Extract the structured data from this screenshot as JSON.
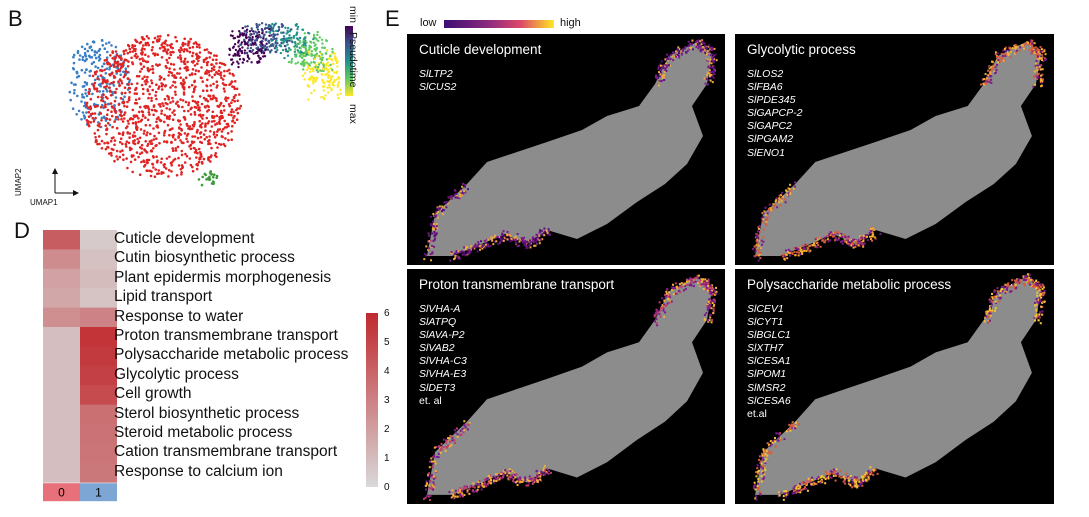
{
  "panels": {
    "b": "B",
    "d": "D",
    "e": "E"
  },
  "umap": {
    "axis_x": "UMAP1",
    "axis_y": "UMAP2"
  },
  "pseudotime": {
    "label": "Pseudotime",
    "min": "min",
    "max": "max"
  },
  "heatmap": {
    "rows": [
      "Cuticle development",
      "Cutin biosynthetic process",
      "Plant epidermis morphogenesis",
      "Lipid transport",
      "Response to water",
      "Proton transmembrane transport",
      "Polysaccharide metabolic process",
      "Glycolytic process",
      "Cell growth",
      "Sterol biosynthetic process",
      "Steroid metabolic process",
      "Cation transmembrane transport",
      "Response to calcium ion"
    ],
    "columns": [
      "0",
      "1"
    ],
    "values": [
      [
        4.2,
        0.5
      ],
      [
        2.6,
        0.8
      ],
      [
        1.9,
        1.0
      ],
      [
        1.7,
        0.7
      ],
      [
        2.5,
        2.9
      ],
      [
        0.9,
        5.6
      ],
      [
        0.9,
        5.4
      ],
      [
        0.9,
        5.2
      ],
      [
        0.9,
        4.8
      ],
      [
        0.9,
        3.6
      ],
      [
        0.9,
        3.5
      ],
      [
        0.9,
        3.4
      ],
      [
        0.9,
        3.3
      ]
    ],
    "scale_ticks": [
      "0",
      "1",
      "2",
      "3",
      "4",
      "5",
      "6"
    ],
    "scale_max": 6,
    "colors": {
      "low": "#d9d9d9",
      "high": "#c0282d",
      "col0": "#e8707a",
      "col1": "#7ea6d4"
    }
  },
  "spatial": {
    "legend_low": "low",
    "legend_high": "high",
    "tiles": [
      {
        "title": "Cuticle development",
        "genes": [
          "SlLTP2",
          "SlCUS2"
        ],
        "note": ""
      },
      {
        "title": "Glycolytic process",
        "genes": [
          "SlLOS2",
          "SlFBA6",
          "SlPDE345",
          "SlGAPCP-2",
          "SlGAPC2",
          "SlPGAM2",
          "SlENO1"
        ],
        "note": ""
      },
      {
        "title": "Proton transmembrane transport",
        "genes": [
          "SlVHA-A",
          "SlATPQ",
          "SlAVA-P2",
          "SlVAB2",
          "SlVHA-C3",
          "SlVHA-E3",
          "SlDET3"
        ],
        "note": "et. al"
      },
      {
        "title": "Polysaccharide metabolic process",
        "genes": [
          "SlCEV1",
          "SlCYT1",
          "SlBGLC1",
          "SlXTH7",
          "SlCESA1",
          "SlPOM1",
          "SlMSR2",
          "SlCESA6"
        ],
        "note": "et.al"
      }
    ]
  }
}
